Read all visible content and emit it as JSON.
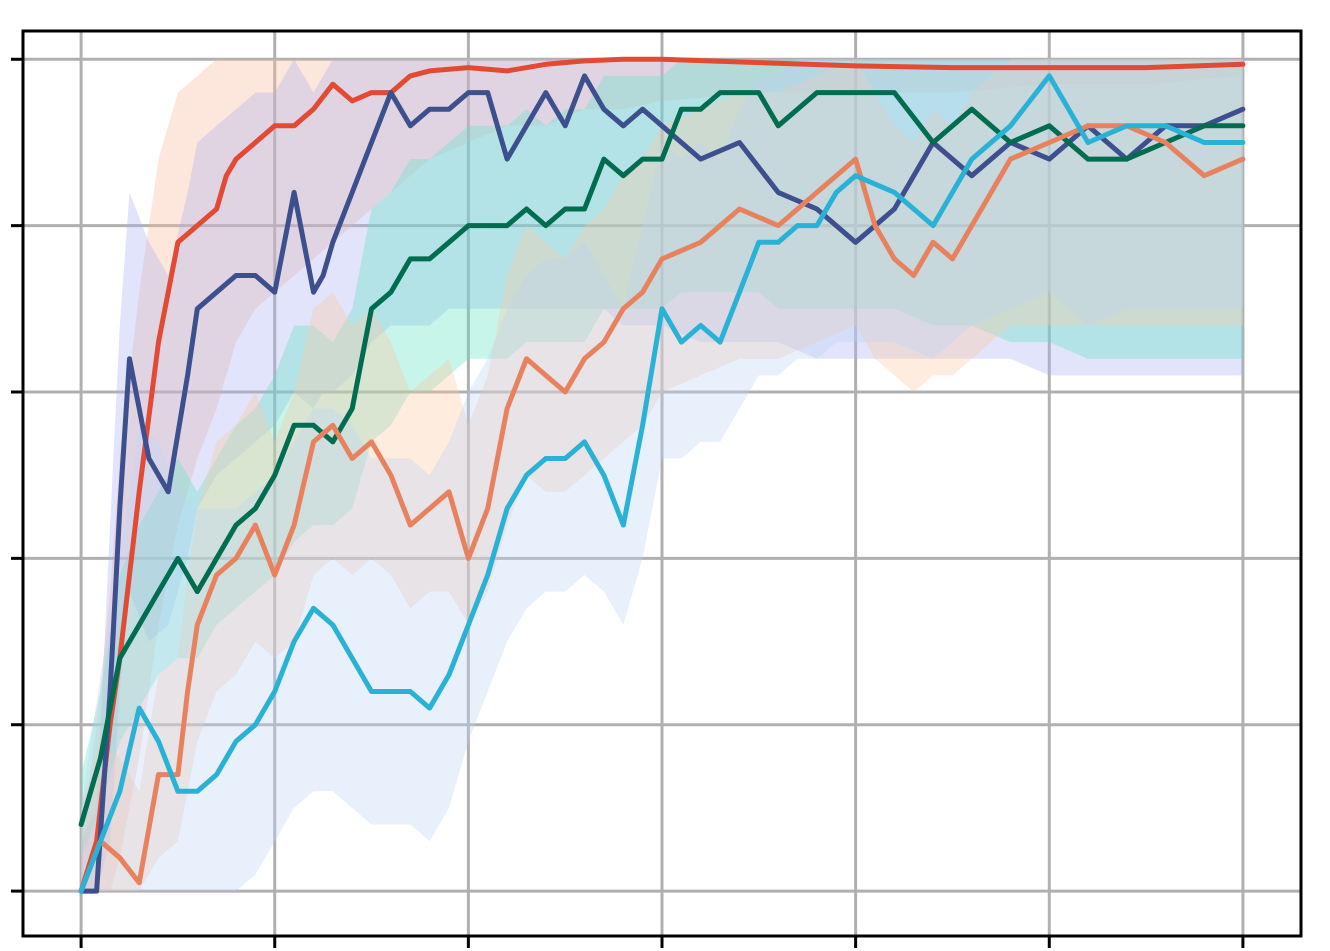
{
  "chart_data": {
    "type": "line",
    "title": "",
    "xlabel": "",
    "ylabel": "",
    "xlim": [
      -0.3,
      6.3
    ],
    "ylim": [
      -0.27,
      5.17
    ],
    "x_ticks": [
      0,
      1,
      2,
      3,
      4,
      5,
      6
    ],
    "y_ticks": [
      0,
      1,
      2,
      3,
      4,
      5
    ],
    "tick_labels_visible": false,
    "grid": true,
    "legend": "none",
    "band_style": "noisy per-episode traces, shown as a shaded range around each series",
    "series": [
      {
        "color": "#e34a33",
        "band_color": "#f9b79a",
        "x": [
          0,
          0.08,
          0.15,
          0.2,
          0.3,
          0.4,
          0.5,
          0.6,
          0.7,
          0.75,
          0.8,
          0.9,
          1.0,
          1.1,
          1.2,
          1.3,
          1.4,
          1.5,
          1.6,
          1.7,
          1.8,
          2.0,
          2.2,
          2.4,
          2.6,
          2.8,
          3.0,
          3.5,
          4.0,
          4.5,
          5.0,
          5.5,
          6.0
        ],
        "y": [
          0.0,
          0.3,
          1.0,
          1.4,
          2.4,
          3.3,
          3.9,
          4.0,
          4.1,
          4.3,
          4.4,
          4.5,
          4.6,
          4.6,
          4.7,
          4.85,
          4.75,
          4.8,
          4.8,
          4.9,
          4.93,
          4.95,
          4.93,
          4.97,
          4.99,
          5.0,
          5.0,
          4.98,
          4.96,
          4.95,
          4.95,
          4.95,
          4.97
        ],
        "lower": [
          0.0,
          0.0,
          0.0,
          0.2,
          0.8,
          1.6,
          2.2,
          2.6,
          2.9,
          3.1,
          3.3,
          3.5,
          3.6,
          3.7,
          3.8,
          3.9,
          4.0,
          4.1,
          4.2,
          4.3,
          4.4,
          4.5,
          4.6,
          4.6,
          4.7,
          4.7,
          4.75,
          4.8,
          4.8,
          4.8,
          4.85,
          4.85,
          4.9
        ],
        "upper": [
          0.3,
          1.0,
          1.8,
          2.6,
          3.6,
          4.4,
          4.8,
          4.9,
          5.0,
          5.0,
          5.0,
          5.0,
          5.0,
          5.0,
          5.0,
          5.0,
          5.0,
          5.0,
          5.0,
          5.0,
          5.0,
          5.0,
          5.0,
          5.0,
          5.0,
          5.0,
          5.0,
          5.0,
          5.0,
          5.0,
          5.0,
          5.0,
          5.0
        ]
      },
      {
        "color": "#3d4f8c",
        "band_color": "#a9b3f0",
        "x": [
          0,
          0.08,
          0.15,
          0.2,
          0.25,
          0.35,
          0.45,
          0.55,
          0.6,
          0.7,
          0.8,
          0.9,
          1.0,
          1.1,
          1.2,
          1.25,
          1.3,
          1.4,
          1.5,
          1.6,
          1.7,
          1.8,
          1.9,
          2.0,
          2.1,
          2.2,
          2.3,
          2.4,
          2.5,
          2.6,
          2.7,
          2.8,
          2.9,
          3.0,
          3.2,
          3.4,
          3.6,
          3.8,
          4.0,
          4.2,
          4.4,
          4.6,
          4.8,
          5.0,
          5.2,
          5.4,
          5.6,
          5.8,
          6.0
        ],
        "y": [
          0.0,
          0.0,
          1.2,
          2.3,
          3.2,
          2.6,
          2.4,
          3.1,
          3.5,
          3.6,
          3.7,
          3.7,
          3.6,
          4.2,
          3.6,
          3.7,
          3.9,
          4.2,
          4.5,
          4.8,
          4.6,
          4.7,
          4.7,
          4.8,
          4.8,
          4.4,
          4.6,
          4.8,
          4.6,
          4.9,
          4.7,
          4.6,
          4.7,
          4.6,
          4.4,
          4.5,
          4.2,
          4.1,
          3.9,
          4.1,
          4.5,
          4.3,
          4.5,
          4.4,
          4.6,
          4.4,
          4.6,
          4.6,
          4.7
        ],
        "lower": [
          0.0,
          0.0,
          0.3,
          1.2,
          1.8,
          1.5,
          1.6,
          2.0,
          2.3,
          2.5,
          2.6,
          2.7,
          2.8,
          3.0,
          2.9,
          3.0,
          3.0,
          3.1,
          3.3,
          3.4,
          3.4,
          3.4,
          3.5,
          3.5,
          3.5,
          3.5,
          3.5,
          3.5,
          3.5,
          3.5,
          3.5,
          3.4,
          3.4,
          3.4,
          3.3,
          3.3,
          3.3,
          3.2,
          3.2,
          3.2,
          3.2,
          3.2,
          3.2,
          3.1,
          3.1,
          3.1,
          3.1,
          3.1,
          3.1
        ],
        "upper": [
          0.3,
          0.5,
          2.2,
          3.4,
          4.2,
          3.9,
          3.7,
          4.2,
          4.5,
          4.6,
          4.7,
          4.8,
          4.8,
          5.0,
          4.8,
          4.9,
          5.0,
          5.0,
          5.0,
          5.0,
          5.0,
          5.0,
          5.0,
          5.0,
          5.0,
          5.0,
          5.0,
          5.0,
          5.0,
          5.0,
          5.0,
          5.0,
          5.0,
          5.0,
          5.0,
          5.0,
          5.0,
          5.0,
          5.0,
          5.0,
          5.0,
          5.0,
          5.0,
          5.0,
          5.0,
          5.0,
          5.0,
          5.0,
          5.0
        ]
      },
      {
        "color": "#006c50",
        "band_color": "#5fe3c4",
        "x": [
          0,
          0.1,
          0.2,
          0.3,
          0.4,
          0.5,
          0.6,
          0.65,
          0.7,
          0.8,
          0.9,
          1.0,
          1.1,
          1.2,
          1.3,
          1.4,
          1.5,
          1.6,
          1.7,
          1.8,
          1.9,
          2.0,
          2.1,
          2.2,
          2.3,
          2.4,
          2.5,
          2.6,
          2.7,
          2.8,
          2.9,
          3.0,
          3.1,
          3.2,
          3.3,
          3.4,
          3.5,
          3.6,
          3.8,
          4.0,
          4.2,
          4.4,
          4.6,
          4.8,
          5.0,
          5.2,
          5.4,
          5.6,
          5.8,
          6.0
        ],
        "y": [
          0.4,
          0.8,
          1.4,
          1.6,
          1.8,
          2.0,
          1.8,
          1.9,
          2.0,
          2.2,
          2.3,
          2.5,
          2.8,
          2.8,
          2.7,
          2.9,
          3.5,
          3.6,
          3.8,
          3.8,
          3.9,
          4.0,
          4.0,
          4.0,
          4.1,
          4.0,
          4.1,
          4.1,
          4.4,
          4.3,
          4.4,
          4.4,
          4.7,
          4.7,
          4.8,
          4.8,
          4.8,
          4.6,
          4.8,
          4.8,
          4.8,
          4.5,
          4.7,
          4.5,
          4.6,
          4.4,
          4.4,
          4.5,
          4.6,
          4.6
        ],
        "lower": [
          0.2,
          0.5,
          0.9,
          1.1,
          1.3,
          1.4,
          1.4,
          1.5,
          1.6,
          1.7,
          1.8,
          1.9,
          2.1,
          2.2,
          2.2,
          2.3,
          2.7,
          2.8,
          3.0,
          3.0,
          3.1,
          3.2,
          3.2,
          3.2,
          3.3,
          3.3,
          3.3,
          3.3,
          3.5,
          3.5,
          3.5,
          3.5,
          3.6,
          3.6,
          3.6,
          3.6,
          3.6,
          3.5,
          3.5,
          3.5,
          3.5,
          3.4,
          3.4,
          3.3,
          3.3,
          3.2,
          3.2,
          3.2,
          3.2,
          3.2
        ],
        "upper": [
          0.7,
          1.2,
          1.9,
          2.2,
          2.4,
          2.6,
          2.4,
          2.5,
          2.6,
          2.8,
          2.9,
          3.1,
          3.4,
          3.4,
          3.3,
          3.5,
          4.1,
          4.2,
          4.4,
          4.4,
          4.5,
          4.6,
          4.6,
          4.6,
          4.7,
          4.6,
          4.7,
          4.7,
          4.9,
          4.9,
          4.9,
          4.9,
          5.0,
          5.0,
          5.0,
          5.0,
          5.0,
          5.0,
          5.0,
          5.0,
          5.0,
          5.0,
          5.0,
          5.0,
          5.0,
          5.0,
          5.0,
          5.0,
          5.0,
          5.0
        ]
      },
      {
        "color": "#e8825e",
        "band_color": "#fcc8a2",
        "x": [
          0,
          0.1,
          0.2,
          0.3,
          0.4,
          0.5,
          0.55,
          0.6,
          0.7,
          0.8,
          0.9,
          1.0,
          1.1,
          1.2,
          1.3,
          1.4,
          1.5,
          1.6,
          1.7,
          1.8,
          1.9,
          2.0,
          2.1,
          2.2,
          2.3,
          2.4,
          2.5,
          2.6,
          2.7,
          2.8,
          2.9,
          3.0,
          3.2,
          3.4,
          3.6,
          3.8,
          4.0,
          4.1,
          4.2,
          4.3,
          4.4,
          4.5,
          4.6,
          4.8,
          5.0,
          5.2,
          5.4,
          5.6,
          5.8,
          6.0
        ],
        "y": [
          0.0,
          0.3,
          0.2,
          0.05,
          0.7,
          0.7,
          1.2,
          1.6,
          1.9,
          2.0,
          2.2,
          1.9,
          2.2,
          2.7,
          2.8,
          2.6,
          2.7,
          2.5,
          2.2,
          2.3,
          2.4,
          2.0,
          2.3,
          2.9,
          3.2,
          3.1,
          3.0,
          3.2,
          3.3,
          3.5,
          3.6,
          3.8,
          3.9,
          4.1,
          4.0,
          4.2,
          4.4,
          4.0,
          3.8,
          3.7,
          3.9,
          3.8,
          4.0,
          4.4,
          4.5,
          4.6,
          4.6,
          4.5,
          4.3,
          4.4
        ],
        "lower": [
          0.0,
          0.0,
          0.0,
          0.0,
          0.2,
          0.3,
          0.6,
          0.9,
          1.2,
          1.3,
          1.5,
          1.4,
          1.5,
          1.9,
          2.0,
          1.9,
          2.0,
          1.9,
          1.7,
          1.8,
          1.8,
          1.6,
          1.8,
          2.2,
          2.5,
          2.4,
          2.4,
          2.5,
          2.6,
          2.7,
          2.8,
          3.0,
          3.1,
          3.2,
          3.2,
          3.3,
          3.4,
          3.2,
          3.1,
          3.0,
          3.1,
          3.1,
          3.2,
          3.4,
          3.4,
          3.4,
          3.4,
          3.4,
          3.4,
          3.4
        ],
        "upper": [
          0.5,
          0.9,
          0.8,
          0.6,
          1.3,
          1.4,
          1.9,
          2.3,
          2.7,
          2.8,
          3.0,
          2.7,
          3.0,
          3.5,
          3.6,
          3.4,
          3.5,
          3.3,
          3.0,
          3.1,
          3.2,
          2.8,
          3.1,
          3.7,
          4.0,
          3.9,
          3.8,
          4.0,
          4.1,
          4.3,
          4.4,
          4.6,
          4.7,
          4.8,
          4.8,
          4.9,
          5.0,
          4.8,
          4.6,
          4.5,
          4.7,
          4.6,
          4.8,
          5.0,
          5.0,
          5.0,
          5.0,
          5.0,
          5.0,
          5.0
        ]
      },
      {
        "color": "#29b2d6",
        "band_color": "#bdd3f7",
        "x": [
          0,
          0.1,
          0.2,
          0.3,
          0.4,
          0.5,
          0.6,
          0.7,
          0.8,
          0.9,
          1.0,
          1.1,
          1.2,
          1.3,
          1.4,
          1.5,
          1.6,
          1.7,
          1.8,
          1.9,
          2.0,
          2.1,
          2.2,
          2.3,
          2.4,
          2.5,
          2.6,
          2.7,
          2.8,
          2.9,
          3.0,
          3.1,
          3.2,
          3.3,
          3.4,
          3.5,
          3.6,
          3.7,
          3.8,
          3.9,
          4.0,
          4.2,
          4.4,
          4.6,
          4.8,
          5.0,
          5.2,
          5.4,
          5.6,
          5.8,
          6.0
        ],
        "y": [
          0.0,
          0.3,
          0.6,
          1.1,
          0.9,
          0.6,
          0.6,
          0.7,
          0.9,
          1.0,
          1.2,
          1.5,
          1.7,
          1.6,
          1.4,
          1.2,
          1.2,
          1.2,
          1.1,
          1.3,
          1.6,
          1.9,
          2.3,
          2.5,
          2.6,
          2.6,
          2.7,
          2.5,
          2.2,
          2.8,
          3.5,
          3.3,
          3.4,
          3.3,
          3.6,
          3.9,
          3.9,
          4.0,
          4.0,
          4.2,
          4.3,
          4.2,
          4.0,
          4.4,
          4.6,
          4.9,
          4.5,
          4.6,
          4.6,
          4.5,
          4.5
        ],
        "lower": [
          0.0,
          0.0,
          0.0,
          0.0,
          0.0,
          0.0,
          0.0,
          0.0,
          0.0,
          0.1,
          0.3,
          0.5,
          0.6,
          0.6,
          0.5,
          0.4,
          0.4,
          0.4,
          0.3,
          0.5,
          0.9,
          1.2,
          1.5,
          1.7,
          1.8,
          1.8,
          1.9,
          1.8,
          1.6,
          2.0,
          2.6,
          2.6,
          2.7,
          2.7,
          2.9,
          3.1,
          3.1,
          3.2,
          3.2,
          3.3,
          3.3,
          3.3,
          3.2,
          3.4,
          3.5,
          3.6,
          3.4,
          3.5,
          3.5,
          3.5,
          3.5
        ],
        "upper": [
          0.5,
          1.3,
          2.0,
          2.8,
          2.7,
          2.4,
          2.3,
          2.3,
          2.3,
          2.4,
          2.5,
          2.7,
          2.9,
          2.9,
          2.8,
          2.6,
          2.6,
          2.6,
          2.5,
          2.7,
          3.0,
          3.2,
          3.5,
          3.7,
          3.8,
          3.8,
          3.9,
          3.7,
          3.5,
          4.0,
          4.5,
          4.4,
          4.5,
          4.4,
          4.7,
          4.9,
          4.9,
          5.0,
          5.0,
          5.0,
          5.0,
          5.0,
          5.0,
          5.0,
          5.0,
          5.0,
          5.0,
          5.0,
          5.0,
          5.0,
          5.0
        ]
      }
    ]
  }
}
